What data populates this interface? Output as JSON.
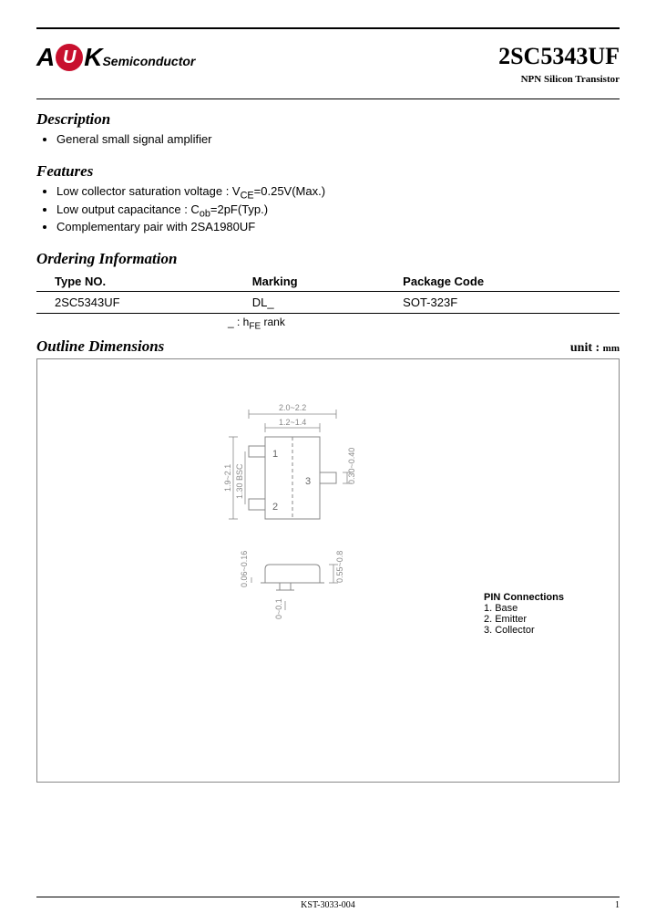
{
  "logo": {
    "a": "A",
    "u": "U",
    "k": "K",
    "semi": "Semiconductor"
  },
  "part": {
    "number": "2SC5343UF",
    "subtitle": "NPN Silicon Transistor"
  },
  "sections": {
    "description": {
      "title": "Description",
      "items": [
        "General small signal amplifier"
      ]
    },
    "features": {
      "title": "Features",
      "items": [
        "Low collector saturation voltage : V<sub>CE</sub>=0.25V(Max.)",
        "Low output capacitance : C<sub>ob</sub>=2pF(Typ.)",
        "Complementary pair with 2SA1980UF"
      ]
    },
    "ordering": {
      "title": "Ordering Information",
      "headers": [
        "Type NO.",
        "Marking",
        "Package Code"
      ],
      "row": [
        "2SC5343UF",
        "DL_",
        "SOT-323F"
      ],
      "rank_note": "_ : h<sub>FE</sub> rank"
    },
    "outline": {
      "title": "Outline Dimensions",
      "unit_label": "unit :",
      "unit_value": "mm"
    }
  },
  "diagram": {
    "dims": {
      "width_outer": "2.0~2.2",
      "width_inner": "1.2~1.4",
      "lead_w": "0.30~0.40",
      "height": "1.9~2.1",
      "bsc": "1.30 BSC",
      "side_h": "0.55~0.8",
      "side_thk": "0.06~0.16",
      "foot": "0~0.1"
    },
    "pins": {
      "title": "PIN Connections",
      "p1": "1. Base",
      "p2": "2. Emitter",
      "p3": "3. Collector",
      "n1": "1",
      "n2": "2",
      "n3": "3"
    }
  },
  "footer": {
    "doc": "KST-3033-004",
    "page": "1"
  },
  "colors": {
    "accent": "#c8102e",
    "gray": "#888888"
  }
}
